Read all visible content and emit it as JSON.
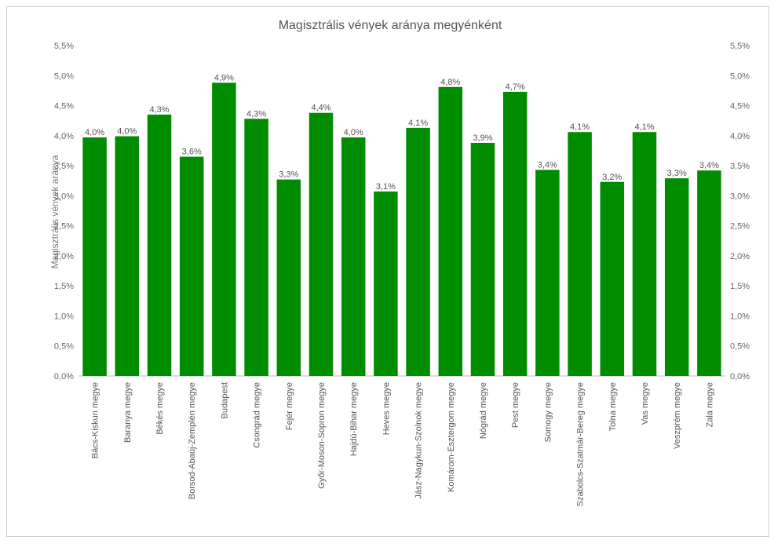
{
  "chart_data": {
    "type": "bar",
    "title": "Magisztrális vények aránya megyénként",
    "xlabel": "",
    "ylabel": "Magisztrális vények aránya",
    "ylim": [
      0,
      5.5
    ],
    "grid": false,
    "bar_color": "#008c00",
    "y_ticks": [
      "0,0%",
      "0,5%",
      "1,0%",
      "1,5%",
      "2,0%",
      "2,5%",
      "3,0%",
      "3,5%",
      "4,0%",
      "4,5%",
      "5,0%",
      "5,5%"
    ],
    "categories": [
      "Bács-Kiskun megye",
      "Baranya megye",
      "Békés megye",
      "Borsod-Abaúj-Zemplén megye",
      "Budapest",
      "Csongrád megye",
      "Fejér megye",
      "Győr-Moson-Sopron megye",
      "Hajdú-Bihar megye",
      "Heves megye",
      "Jász-Nagykun-Szolnok megye",
      "Komárom-Esztergom megye",
      "Nógrád megye",
      "Pest megye",
      "Somogy megye",
      "Szabolcs-Szatmár-Bereg megye",
      "Tolna megye",
      "Vas megye",
      "Veszprém megye",
      "Zala megye"
    ],
    "values": [
      3.97,
      3.99,
      4.35,
      3.65,
      4.88,
      4.28,
      3.27,
      4.38,
      3.97,
      3.07,
      4.13,
      4.81,
      3.88,
      4.73,
      3.43,
      4.06,
      3.23,
      4.06,
      3.29,
      3.42
    ],
    "data_labels": [
      "4,0%",
      "4,0%",
      "4,3%",
      "3,6%",
      "4,9%",
      "4,3%",
      "3,3%",
      "4,4%",
      "4,0%",
      "3,1%",
      "4,1%",
      "4,8%",
      "3,9%",
      "4,7%",
      "3,4%",
      "4,1%",
      "3,2%",
      "4,1%",
      "3,3%",
      "3,4%"
    ]
  }
}
